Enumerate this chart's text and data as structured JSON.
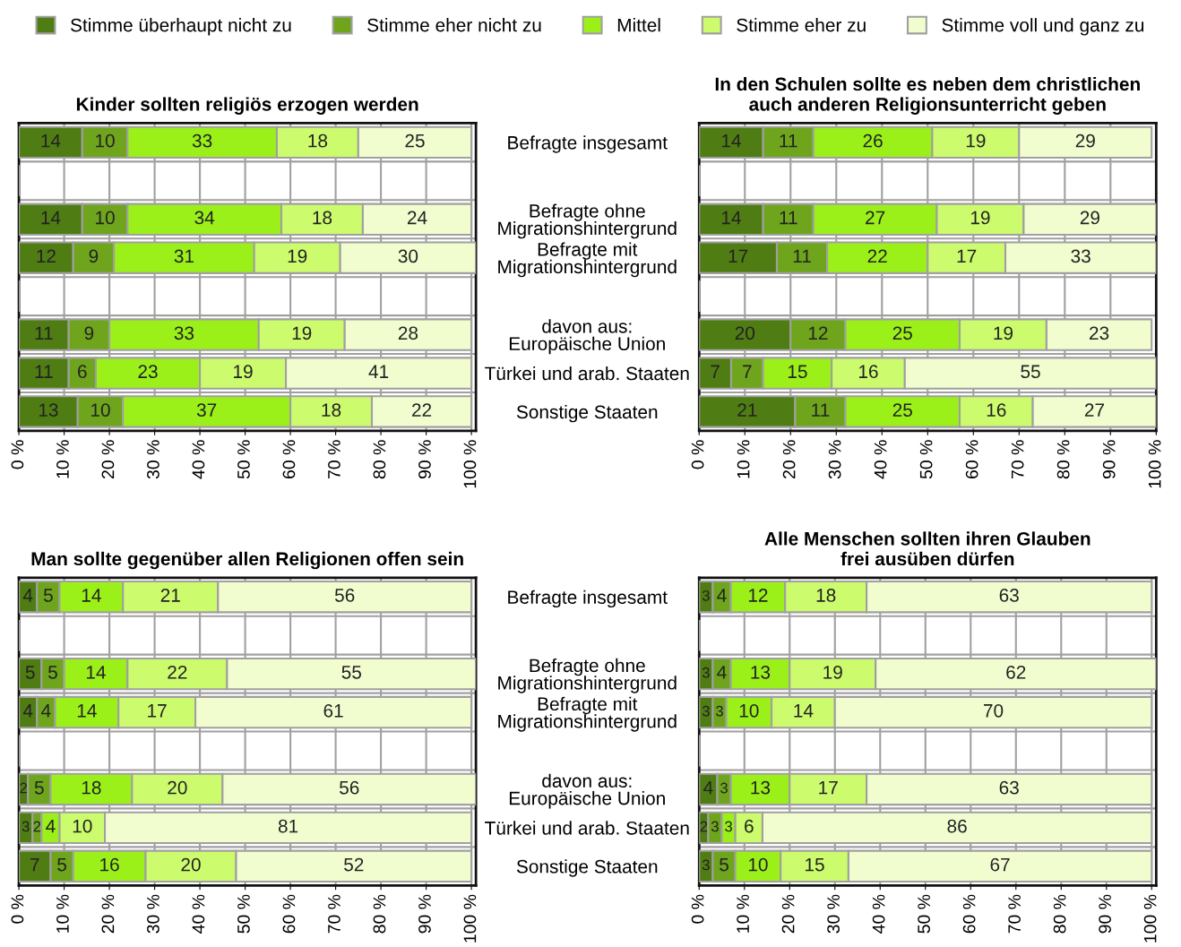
{
  "chart_data": [
    {
      "type": "bar",
      "orientation": "horizontal",
      "stacked": true,
      "title": "Kinder sollten religiös erzogen werden",
      "categories": [
        null,
        null,
        null,
        null,
        null,
        null,
        null,
        null
      ],
      "xlim": [
        0,
        101
      ],
      "xticks": [
        {
          "value": 0,
          "label": "0 %"
        },
        {
          "value": 10,
          "label": "10 %"
        },
        {
          "value": 20,
          "label": "20 %"
        },
        {
          "value": 30,
          "label": "30 %"
        },
        {
          "value": 40,
          "label": "40 %"
        },
        {
          "value": 50,
          "label": "50 %"
        },
        {
          "value": 60,
          "label": "60 %"
        },
        {
          "value": 70,
          "label": "70 %"
        },
        {
          "value": 80,
          "label": "80 %"
        },
        {
          "value": 90,
          "label": "90 %"
        },
        {
          "value": 100,
          "label": "100 %"
        }
      ],
      "grid": true,
      "data_labels": true,
      "legend": "top",
      "tick_labels": "x",
      "series": [
        {
          "name": "Stimme überhaupt nicht zu",
          "color": "#4f7d13",
          "values": [
            14,
            null,
            14,
            12,
            null,
            11,
            11,
            13
          ]
        },
        {
          "name": "Stimme eher nicht zu",
          "color": "#6ea51c",
          "values": [
            10,
            null,
            10,
            9,
            null,
            9,
            6,
            10
          ]
        },
        {
          "name": "Mittel",
          "color": "#9cf01a",
          "values": [
            33,
            null,
            34,
            31,
            null,
            33,
            23,
            37
          ]
        },
        {
          "name": "Stimme eher zu",
          "color": "#cdfb6e",
          "values": [
            18,
            null,
            18,
            19,
            null,
            19,
            19,
            18
          ]
        },
        {
          "name": "Stimme voll und ganz zu",
          "color": "#f1fdcf",
          "values": [
            25,
            null,
            24,
            30,
            null,
            28,
            41,
            22
          ]
        }
      ]
    },
    {
      "type": "bar",
      "orientation": "horizontal",
      "stacked": true,
      "title": "In den Schulen sollte es neben dem christlichen\nauch anderen Religionsunterricht geben",
      "categories": [
        "Befragte insgesamt",
        null,
        "Befragte ohne\nMigrationshintergrund",
        "Befragte mit\nMigrationshintergrund",
        null,
        "davon aus:\nEuropäische Union",
        "Türkei und arab. Staaten",
        "Sonstige Staaten"
      ],
      "xlim": [
        0,
        100
      ],
      "xticks": [
        {
          "value": 0,
          "label": "0 %"
        },
        {
          "value": 10,
          "label": "10 %"
        },
        {
          "value": 20,
          "label": "20 %"
        },
        {
          "value": 30,
          "label": "30 %"
        },
        {
          "value": 40,
          "label": "40 %"
        },
        {
          "value": 50,
          "label": "50 %"
        },
        {
          "value": 60,
          "label": "60 %"
        },
        {
          "value": 70,
          "label": "70 %"
        },
        {
          "value": 80,
          "label": "80 %"
        },
        {
          "value": 90,
          "label": "90 %"
        },
        {
          "value": 100,
          "label": "100 %"
        }
      ],
      "grid": true,
      "data_labels": true,
      "series": [
        {
          "color": "#4f7d13",
          "values": [
            14,
            null,
            14,
            17,
            null,
            20,
            7,
            21
          ]
        },
        {
          "color": "#6ea51c",
          "values": [
            11,
            null,
            11,
            11,
            null,
            12,
            7,
            11
          ]
        },
        {
          "color": "#9cf01a",
          "values": [
            26,
            null,
            27,
            22,
            null,
            25,
            15,
            25
          ]
        },
        {
          "color": "#cdfb6e",
          "values": [
            19,
            null,
            19,
            17,
            null,
            19,
            16,
            16
          ]
        },
        {
          "color": "#f1fdcf",
          "values": [
            29,
            null,
            29,
            33,
            null,
            23,
            55,
            27
          ]
        }
      ]
    },
    {
      "type": "bar",
      "orientation": "horizontal",
      "stacked": true,
      "title": "Man sollte gegenüber allen Religionen offen sein",
      "categories": [
        null,
        null,
        null,
        null,
        null,
        null,
        null,
        null
      ],
      "xlim": [
        0,
        101
      ],
      "xticks": [
        {
          "value": 0,
          "label": "0 %"
        },
        {
          "value": 10,
          "label": "10 %"
        },
        {
          "value": 20,
          "label": "20 %"
        },
        {
          "value": 30,
          "label": "30 %"
        },
        {
          "value": 40,
          "label": "40 %"
        },
        {
          "value": 50,
          "label": "50 %"
        },
        {
          "value": 60,
          "label": "60 %"
        },
        {
          "value": 70,
          "label": "70 %"
        },
        {
          "value": 80,
          "label": "80 %"
        },
        {
          "value": 90,
          "label": "90 %"
        },
        {
          "value": 100,
          "label": "100 %"
        }
      ],
      "grid": true,
      "data_labels": true,
      "tick_labels": "x",
      "series": [
        {
          "color": "#4f7d13",
          "values": [
            4,
            null,
            5,
            4,
            null,
            2,
            3,
            7
          ]
        },
        {
          "color": "#6ea51c",
          "values": [
            5,
            null,
            5,
            4,
            null,
            5,
            2,
            5
          ]
        },
        {
          "color": "#9cf01a",
          "values": [
            14,
            null,
            14,
            14,
            null,
            18,
            4,
            16
          ]
        },
        {
          "color": "#cdfb6e",
          "values": [
            21,
            null,
            22,
            17,
            null,
            20,
            10,
            20
          ]
        },
        {
          "color": "#f1fdcf",
          "values": [
            56,
            null,
            55,
            61,
            null,
            56,
            81,
            52
          ]
        }
      ]
    },
    {
      "type": "bar",
      "orientation": "horizontal",
      "stacked": true,
      "title": "Alle Menschen sollten ihren Glauben\nfrei ausüben dürfen",
      "categories": [
        "Befragte insgesamt",
        null,
        "Befragte ohne\nMigrationshintergrund",
        "Befragte mit\nMigrationshintergrund",
        null,
        "davon aus:\nEuropäische Union",
        "Türkei und arab. Staaten",
        "Sonstige Staaten"
      ],
      "xlim": [
        0,
        101
      ],
      "xticks": [
        {
          "value": 0,
          "label": "0 %"
        },
        {
          "value": 10,
          "label": "10 %"
        },
        {
          "value": 20,
          "label": "20 %"
        },
        {
          "value": 30,
          "label": "30 %"
        },
        {
          "value": 40,
          "label": "40 %"
        },
        {
          "value": 50,
          "label": "50 %"
        },
        {
          "value": 60,
          "label": "60 %"
        },
        {
          "value": 70,
          "label": "70 %"
        },
        {
          "value": 80,
          "label": "80 %"
        },
        {
          "value": 90,
          "label": "90 %"
        },
        {
          "value": 100,
          "label": "100 %"
        }
      ],
      "grid": true,
      "data_labels": true,
      "series": [
        {
          "color": "#4f7d13",
          "values": [
            3,
            null,
            3,
            3,
            null,
            4,
            2,
            3
          ]
        },
        {
          "color": "#6ea51c",
          "values": [
            4,
            null,
            4,
            3,
            null,
            3,
            3,
            5
          ]
        },
        {
          "color": "#9cf01a",
          "values": [
            12,
            null,
            13,
            10,
            null,
            13,
            3,
            10
          ]
        },
        {
          "color": "#cdfb6e",
          "values": [
            18,
            null,
            19,
            14,
            null,
            17,
            6,
            15
          ]
        },
        {
          "color": "#f1fdcf",
          "values": [
            63,
            null,
            62,
            70,
            null,
            63,
            86,
            67
          ]
        }
      ]
    }
  ]
}
